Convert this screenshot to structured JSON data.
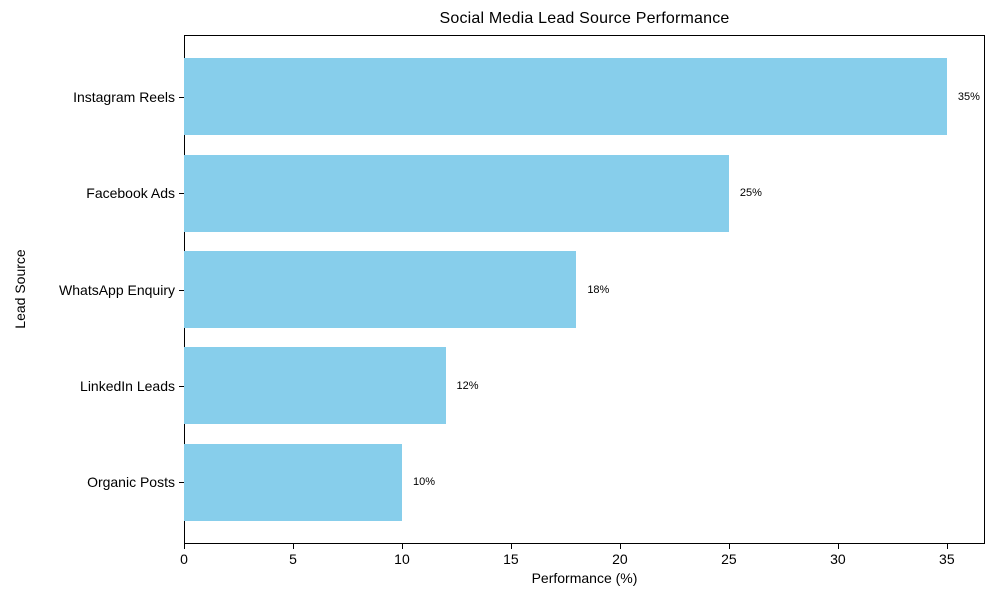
{
  "chart_data": {
    "type": "bar",
    "orientation": "horizontal",
    "title": "Social Media Lead Source Performance",
    "xlabel": "Performance (%)",
    "ylabel": "Lead Source",
    "categories": [
      "Instagram Reels",
      "Facebook Ads",
      "WhatsApp Enquiry",
      "LinkedIn Leads",
      "Organic Posts"
    ],
    "values": [
      35,
      25,
      18,
      12,
      10
    ],
    "value_labels": [
      "35%",
      "25%",
      "18%",
      "12%",
      "10%"
    ],
    "x_ticks": [
      0,
      5,
      10,
      15,
      20,
      25,
      30,
      35
    ],
    "xlim": [
      0,
      36.75
    ],
    "bar_color": "#87CEEB",
    "text_color": "#000000",
    "grid": false,
    "legend": false
  }
}
